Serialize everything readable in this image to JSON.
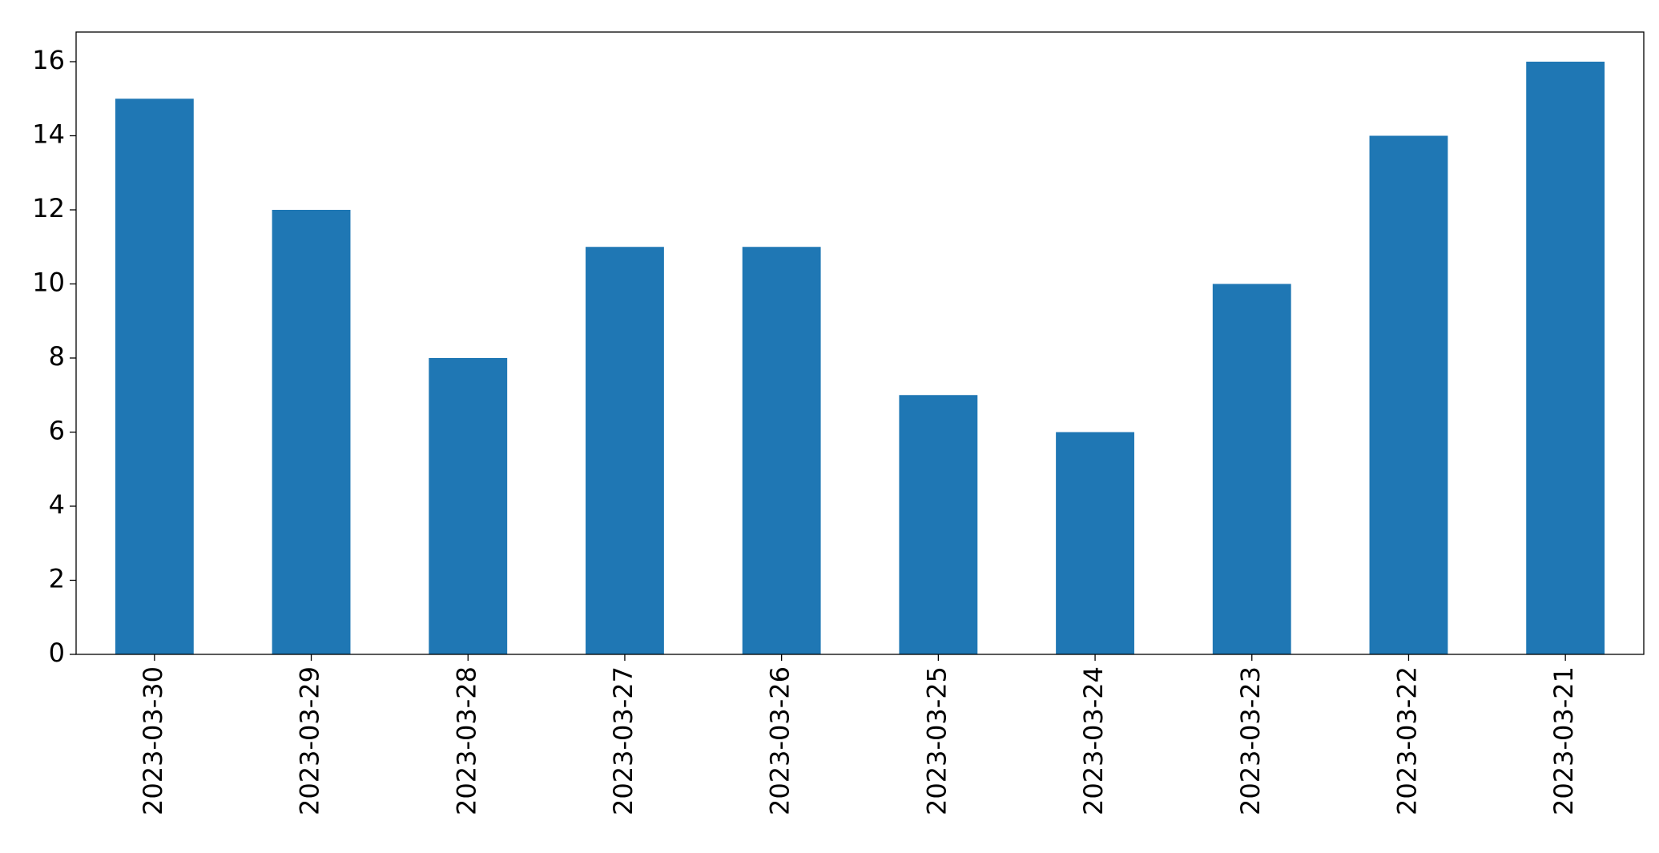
{
  "chart_data": {
    "type": "bar",
    "categories": [
      "2023-03-30",
      "2023-03-29",
      "2023-03-28",
      "2023-03-27",
      "2023-03-26",
      "2023-03-25",
      "2023-03-24",
      "2023-03-23",
      "2023-03-22",
      "2023-03-21"
    ],
    "values": [
      15,
      12,
      8,
      11,
      11,
      7,
      6,
      10,
      14,
      16
    ],
    "color": "#1f77b4",
    "ylim": [
      0,
      16.8
    ],
    "yticks": [
      0,
      2,
      4,
      6,
      8,
      10,
      12,
      14,
      16
    ]
  }
}
